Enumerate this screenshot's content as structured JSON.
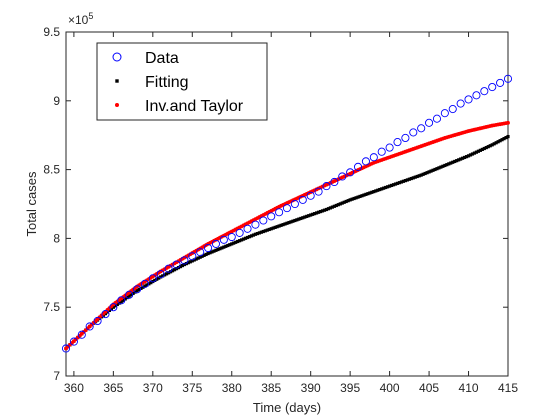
{
  "chart_data": {
    "type": "scatter",
    "xlabel": "Time (days)",
    "ylabel": "Total cases",
    "xlim": [
      359,
      415
    ],
    "ylim": [
      7.0,
      9.5
    ],
    "y_exponent_label": "×10",
    "y_exponent_power": "5",
    "x_ticks": [
      360,
      365,
      370,
      375,
      380,
      385,
      390,
      395,
      400,
      405,
      410,
      415
    ],
    "y_ticks": [
      7,
      7.5,
      8,
      8.5,
      9,
      9.5
    ],
    "x_tick_labels": [
      "360",
      "365",
      "370",
      "375",
      "380",
      "385",
      "390",
      "395",
      "400",
      "405",
      "410",
      "415"
    ],
    "y_tick_labels": [
      "7",
      "7.5",
      "8",
      "8.5",
      "9",
      "9.5"
    ],
    "grid": false,
    "legend_position": "top-left",
    "series": [
      {
        "name": "Data",
        "marker": "circle-open",
        "color": "#0000ff",
        "x": [
          359,
          360,
          361,
          362,
          363,
          364,
          365,
          366,
          367,
          368,
          369,
          370,
          371,
          372,
          373,
          374,
          375,
          376,
          377,
          378,
          379,
          380,
          381,
          382,
          383,
          384,
          385,
          386,
          387,
          388,
          389,
          390,
          391,
          392,
          393,
          394,
          395,
          396,
          397,
          398,
          399,
          400,
          401,
          402,
          403,
          404,
          405,
          406,
          407,
          408,
          409,
          410,
          411,
          412,
          413,
          414,
          415
        ],
        "y": [
          7.2,
          7.25,
          7.3,
          7.36,
          7.4,
          7.45,
          7.5,
          7.55,
          7.59,
          7.63,
          7.67,
          7.71,
          7.74,
          7.78,
          7.81,
          7.84,
          7.87,
          7.9,
          7.93,
          7.96,
          7.99,
          8.01,
          8.04,
          8.07,
          8.1,
          8.13,
          8.16,
          8.19,
          8.22,
          8.25,
          8.28,
          8.31,
          8.34,
          8.38,
          8.41,
          8.45,
          8.48,
          8.52,
          8.56,
          8.59,
          8.63,
          8.66,
          8.7,
          8.73,
          8.77,
          8.8,
          8.84,
          8.87,
          8.91,
          8.94,
          8.98,
          9.01,
          9.04,
          9.07,
          9.1,
          9.13,
          9.16
        ]
      },
      {
        "name": "Fitting",
        "marker": "square-filled",
        "color": "#000000",
        "x_start": 359,
        "x_end": 415,
        "x_step": 0.25,
        "x": [
          359,
          362,
          365,
          368,
          371,
          374,
          377,
          380,
          383,
          386,
          389,
          392,
          395,
          398,
          401,
          404,
          407,
          410,
          413,
          415
        ],
        "y": [
          7.2,
          7.36,
          7.5,
          7.62,
          7.72,
          7.81,
          7.89,
          7.96,
          8.03,
          8.09,
          8.15,
          8.21,
          8.28,
          8.34,
          8.4,
          8.46,
          8.53,
          8.6,
          8.68,
          8.74
        ]
      },
      {
        "name": "Inv.and Taylor",
        "marker": "dot-filled",
        "color": "#ff0000",
        "x_start": 359,
        "x_end": 415,
        "x_step": 0.25,
        "x": [
          359,
          362,
          365,
          368,
          371,
          374,
          377,
          380,
          383,
          386,
          389,
          392,
          395,
          398,
          401,
          404,
          407,
          410,
          413,
          415
        ],
        "y": [
          7.2,
          7.36,
          7.52,
          7.65,
          7.76,
          7.86,
          7.96,
          8.05,
          8.14,
          8.23,
          8.31,
          8.39,
          8.47,
          8.55,
          8.61,
          8.67,
          8.73,
          8.78,
          8.82,
          8.84
        ]
      }
    ]
  }
}
